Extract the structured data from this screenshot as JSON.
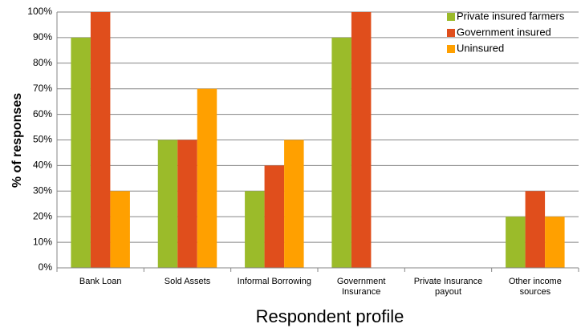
{
  "chart_data": {
    "type": "bar",
    "title": "",
    "xlabel": "Respondent profile",
    "ylabel": "% of responses",
    "categories": [
      [
        "Bank Loan"
      ],
      [
        "Sold Assets"
      ],
      [
        "Informal Borrowing"
      ],
      [
        "Government",
        "Insurance"
      ],
      [
        "Private Insurance",
        "payout"
      ],
      [
        "Other income",
        "sources"
      ]
    ],
    "series": [
      {
        "name": "Private insured farmers",
        "color": "#9bbb2a",
        "values": [
          90,
          50,
          30,
          90,
          0,
          20
        ]
      },
      {
        "name": "Government insured",
        "color": "#e04e1c",
        "values": [
          100,
          50,
          40,
          100,
          0,
          30
        ]
      },
      {
        "name": "Uninsured",
        "color": "#ffa000",
        "values": [
          30,
          70,
          50,
          0,
          0,
          20
        ]
      }
    ],
    "ylim": [
      0,
      100
    ],
    "yticks": [
      "0%",
      "10%",
      "20%",
      "30%",
      "40%",
      "50%",
      "60%",
      "70%",
      "80%",
      "90%",
      "100%"
    ],
    "grid": true,
    "legend_position": "top-right"
  }
}
